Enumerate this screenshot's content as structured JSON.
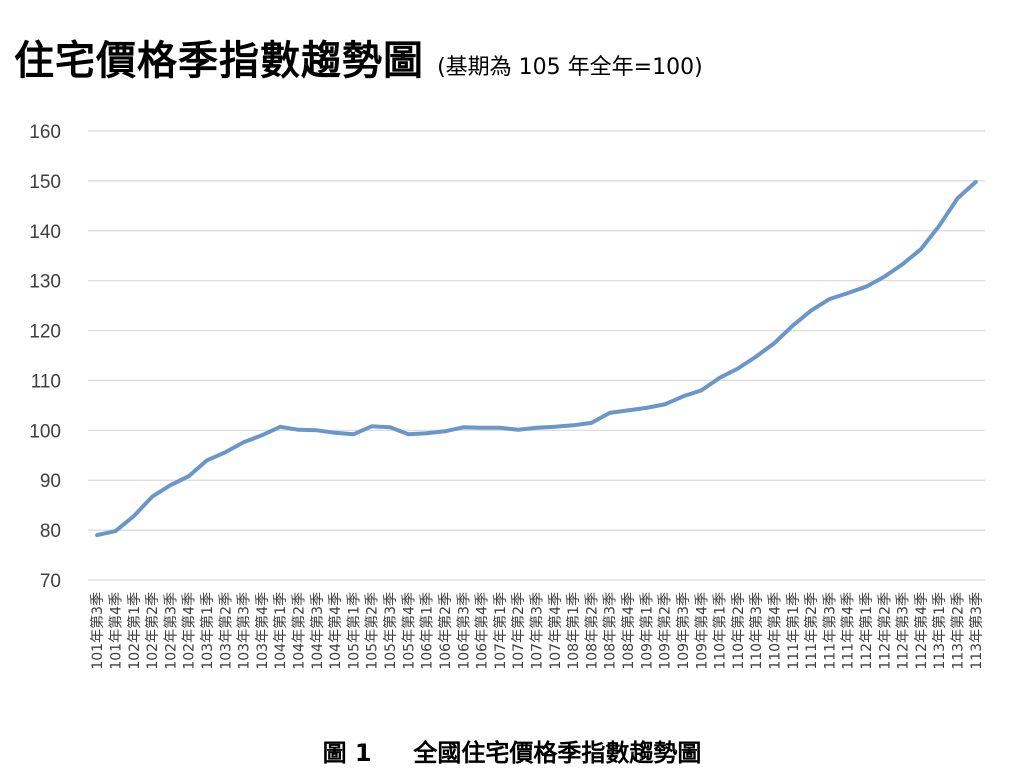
{
  "title": "住宅價格季指數趨勢圖",
  "subtitle": "(基期為 105 年全年=100)",
  "caption": "圖 1     全國住宅價格季指數趨勢圖",
  "line_color": "#6A96C8",
  "grid_color": "#D9D9D9",
  "chart_data": {
    "type": "line",
    "title": "住宅價格季指數趨勢圖",
    "subtitle": "(基期為 105 年全年=100)",
    "ylim": [
      70,
      160
    ],
    "yticks": [
      70,
      80,
      90,
      100,
      110,
      120,
      130,
      140,
      150,
      160
    ],
    "grid": true,
    "legend": "none",
    "categories": [
      "101年第3季",
      "101年第4季",
      "102年第1季",
      "102年第2季",
      "102年第3季",
      "102年第4季",
      "103年第1季",
      "103年第2季",
      "103年第3季",
      "103年第4季",
      "104年第1季",
      "104年第2季",
      "104年第3季",
      "104年第4季",
      "105年第1季",
      "105年第2季",
      "105年第3季",
      "105年第4季",
      "106年第1季",
      "106年第2季",
      "106年第3季",
      "106年第4季",
      "107年第1季",
      "107年第2季",
      "107年第3季",
      "107年第4季",
      "108年第1季",
      "108年第2季",
      "108年第3季",
      "108年第4季",
      "109年第1季",
      "109年第2季",
      "109年第3季",
      "109年第4季",
      "110年第1季",
      "110年第2季",
      "110年第3季",
      "110年第4季",
      "111年第1季",
      "111年第2季",
      "111年第3季",
      "111年第4季",
      "112年第1季",
      "112年第2季",
      "112年第3季",
      "112年第4季",
      "113年第1季",
      "113年第2季",
      "113年第3季"
    ],
    "values": [
      79.0,
      79.8,
      82.8,
      86.7,
      89.0,
      90.8,
      94.0,
      95.6,
      97.6,
      99.0,
      100.7,
      100.1,
      100.0,
      99.5,
      99.2,
      100.8,
      100.6,
      99.2,
      99.4,
      99.8,
      100.6,
      100.5,
      100.5,
      100.1,
      100.5,
      100.7,
      101.0,
      101.5,
      103.5,
      104.0,
      104.5,
      105.2,
      106.8,
      108.0,
      110.5,
      112.4,
      114.8,
      117.5,
      121.0,
      124.0,
      126.3,
      127.5,
      128.8,
      130.8,
      133.3,
      136.3,
      141.0,
      146.5,
      149.8
    ]
  }
}
